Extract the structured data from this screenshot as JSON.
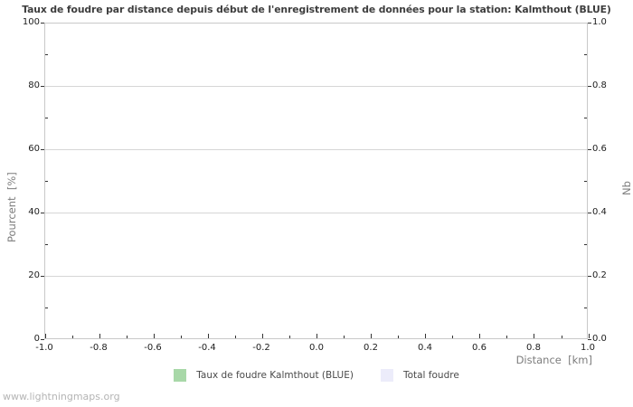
{
  "header": {
    "title": "Taux de foudre par distance depuis début de l'enregistrement de données pour la station: Kalmthout (BLUE)"
  },
  "chart_data": {
    "type": "bar",
    "title": "Taux de foudre par distance depuis début de l'enregistrement de données pour la station: Kalmthout (BLUE)",
    "xlabel": "Distance  [km]",
    "ylabel_left": "Pourcent  [%]",
    "ylabel_right": "Nb",
    "xlim": [
      -1.0,
      1.0
    ],
    "ylim_left": [
      0,
      100
    ],
    "ylim_right": [
      0.0,
      1.0
    ],
    "x_tick_labels": [
      "-1.0",
      "-0.8",
      "-0.6",
      "-0.4",
      "-0.2",
      "0.0",
      "0.2",
      "0.4",
      "0.6",
      "0.8",
      "1.0"
    ],
    "y_tick_labels_left": [
      "100",
      "80",
      "60",
      "40",
      "20",
      "0"
    ],
    "y_tick_labels_right": [
      "1.0",
      "0.8",
      "0.6",
      "0.4",
      "0.2",
      "0.0"
    ],
    "grid": "horizontal-only",
    "legend_position": "bottom-center",
    "series": [
      {
        "name": "Taux de foudre Kalmthout (BLUE)",
        "color": "#a8d8a8",
        "values": []
      },
      {
        "name": "Total foudre",
        "color": "#ececfa",
        "values": []
      }
    ]
  },
  "legend": {
    "items": [
      {
        "label": "Taux de foudre Kalmthout (BLUE)",
        "color": "#a8d8a8"
      },
      {
        "label": "Total foudre",
        "color": "#ececfa"
      }
    ]
  },
  "footer": {
    "credit": "www.lightningmaps.org"
  }
}
